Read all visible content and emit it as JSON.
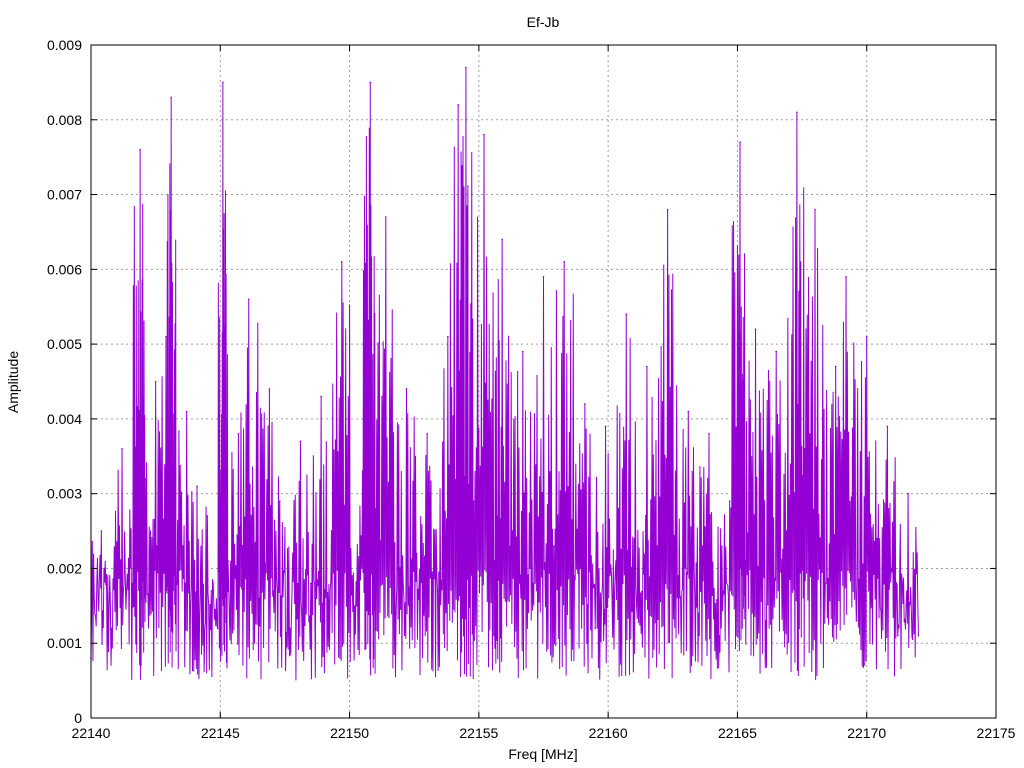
{
  "chart_data": {
    "type": "line",
    "title": "Ef-Jb",
    "xlabel": "Freq [MHz]",
    "ylabel": "Amplitude",
    "xlim": [
      22140,
      22175
    ],
    "ylim": [
      0,
      0.009
    ],
    "x_ticks": [
      "22140",
      "22145",
      "22150",
      "22155",
      "22160",
      "22165",
      "22170",
      "22175"
    ],
    "y_ticks": [
      "0",
      "0.001",
      "0.002",
      "0.003",
      "0.004",
      "0.005",
      "0.006",
      "0.007",
      "0.008",
      "0.009"
    ],
    "grid": true,
    "line_color": "#9400d3",
    "series": [
      {
        "x": [
          22140.0,
          22140.4,
          22140.8,
          22141.2,
          22141.6,
          22141.9,
          22142.1,
          22142.5,
          22142.9,
          22143.1,
          22143.3,
          22143.7,
          22144.1,
          22144.5,
          22144.9,
          22145.1,
          22145.3,
          22145.7,
          22146.1,
          22146.5,
          22146.9,
          22147.3,
          22147.7,
          22148.1,
          22148.5,
          22148.9,
          22149.3,
          22149.7,
          22150.1,
          22150.5,
          22150.8,
          22151.0,
          22151.4,
          22151.8,
          22152.2,
          22152.6,
          22153.0,
          22153.4,
          22153.8,
          22154.2,
          22154.5,
          22154.8,
          22155.2,
          22155.6,
          22155.9,
          22156.3,
          22156.7,
          22157.1,
          22157.5,
          22157.9,
          22158.3,
          22158.7,
          22159.1,
          22159.5,
          22159.9,
          22160.3,
          22160.7,
          22161.1,
          22161.5,
          22161.9,
          22162.3,
          22162.7,
          22163.1,
          22163.5,
          22163.9,
          22164.3,
          22164.7,
          22165.1,
          22165.3,
          22165.7,
          22166.1,
          22166.5,
          22166.9,
          22167.3,
          22167.6,
          22168.0,
          22168.4,
          22168.8,
          22169.2,
          22169.6,
          22170.0,
          22170.4,
          22170.8,
          22171.2,
          22171.6,
          22172.0
        ],
        "y": [
          0.0008,
          0.0025,
          0.0012,
          0.0036,
          0.0018,
          0.0076,
          0.0032,
          0.0045,
          0.0051,
          0.0083,
          0.0018,
          0.0041,
          0.0031,
          0.0027,
          0.0012,
          0.0085,
          0.0021,
          0.0038,
          0.0056,
          0.0016,
          0.0044,
          0.0029,
          0.0012,
          0.0037,
          0.0018,
          0.0043,
          0.0025,
          0.0061,
          0.0019,
          0.0033,
          0.0085,
          0.0028,
          0.0067,
          0.0014,
          0.0044,
          0.0022,
          0.0038,
          0.0017,
          0.0051,
          0.0082,
          0.0087,
          0.0029,
          0.0078,
          0.0021,
          0.0064,
          0.0025,
          0.0049,
          0.0018,
          0.0059,
          0.0023,
          0.0061,
          0.0019,
          0.0042,
          0.0012,
          0.0039,
          0.0021,
          0.0054,
          0.0015,
          0.0047,
          0.0023,
          0.0068,
          0.0019,
          0.0041,
          0.0014,
          0.0038,
          0.0011,
          0.0029,
          0.0077,
          0.0021,
          0.0052,
          0.0013,
          0.0049,
          0.0025,
          0.0081,
          0.0036,
          0.0068,
          0.0018,
          0.0047,
          0.0059,
          0.0013,
          0.0051,
          0.0024,
          0.0039,
          0.0011,
          0.003,
          0.0011
        ]
      }
    ]
  }
}
